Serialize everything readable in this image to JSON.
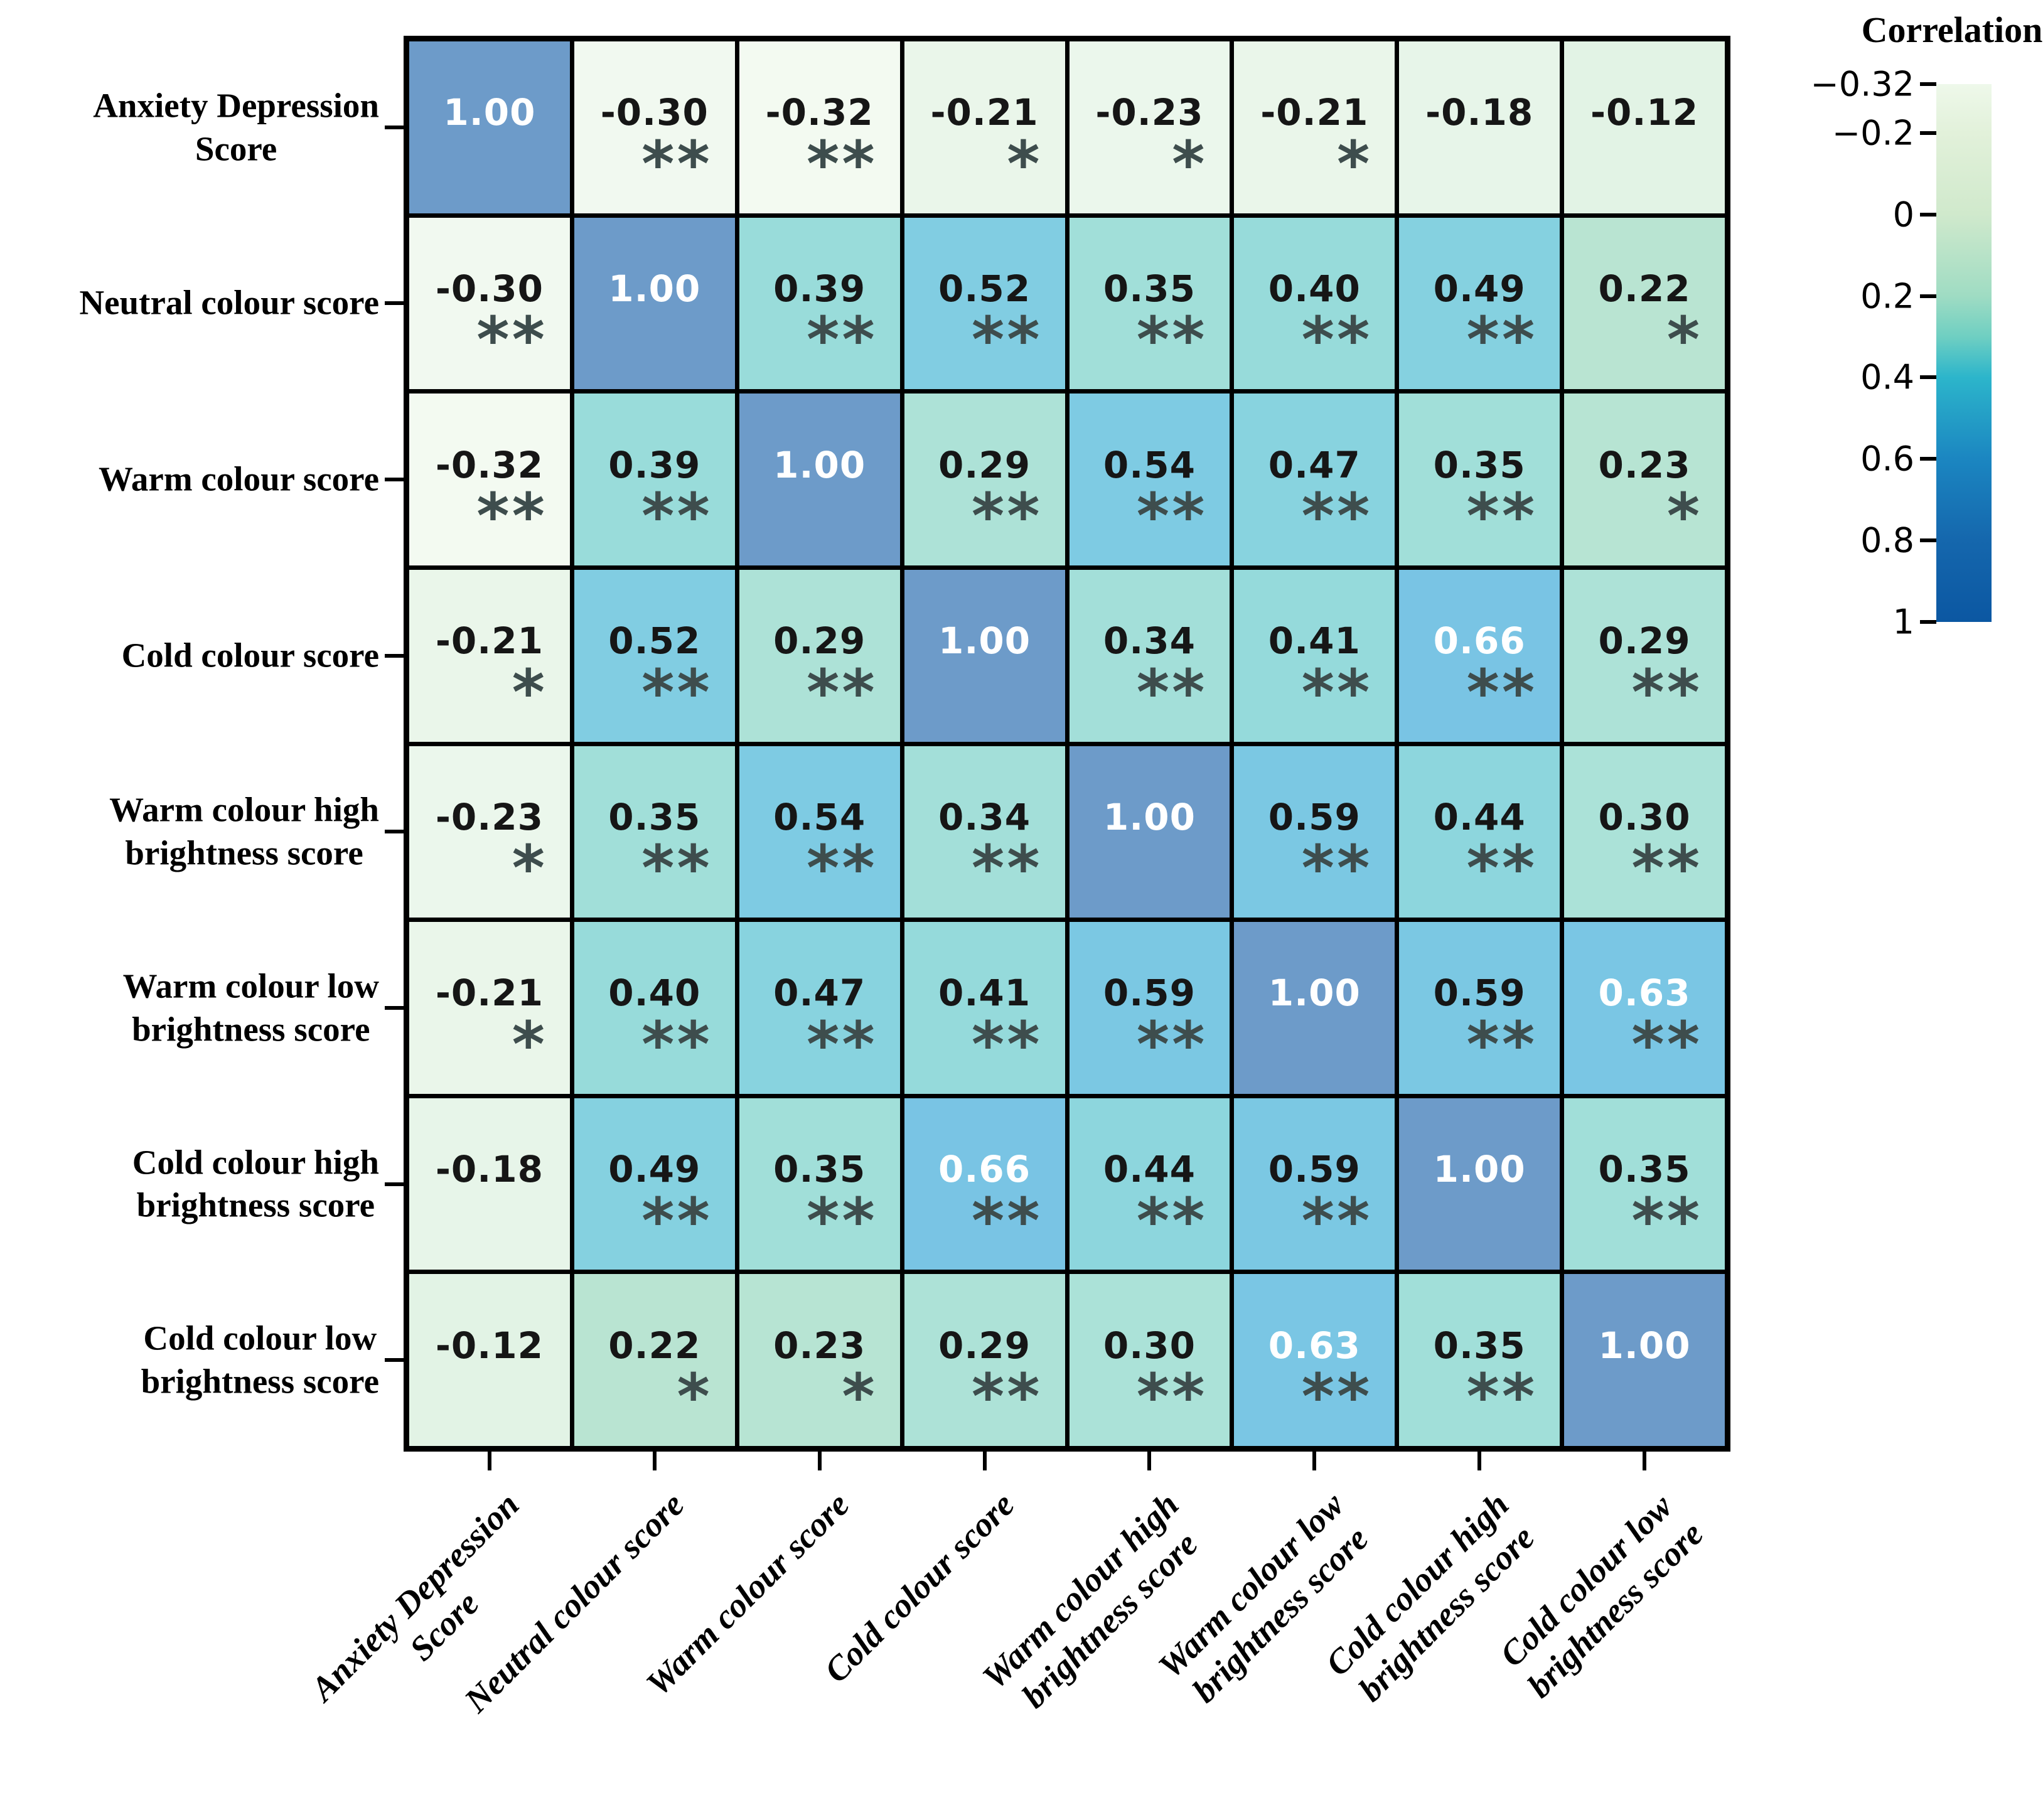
{
  "figure": {
    "kind": "correlation-heatmap"
  },
  "variables": [
    "Anxiety Depression Score",
    "Neutral colour score",
    "Warm colour score",
    "Cold colour score",
    "Warm colour high brightness score",
    "Warm colour low brightness score",
    "Cold colour high brightness score",
    "Cold colour low brightness score"
  ],
  "row_label_lines": [
    [
      "Anxiety Depression",
      "Score"
    ],
    [
      "Neutral colour score"
    ],
    [
      "Warm colour score"
    ],
    [
      "Cold colour score"
    ],
    [
      "Warm colour high",
      "brightness score"
    ],
    [
      "Warm colour low",
      "brightness score"
    ],
    [
      "Cold colour high",
      "brightness score"
    ],
    [
      "Cold colour low",
      "brightness score"
    ]
  ],
  "col_label_lines": [
    [
      "Anxiety Depression",
      "Score"
    ],
    [
      "Neutral colour score"
    ],
    [
      "Warm colour score"
    ],
    [
      "Cold colour score"
    ],
    [
      "Warm colour high",
      "brightness score"
    ],
    [
      "Warm colour low",
      "brightness score"
    ],
    [
      "Cold colour high",
      "brightness score"
    ],
    [
      "Cold colour low",
      "brightness score"
    ]
  ],
  "colorbar": {
    "title": "Correlation",
    "tick_labels": [
      "−0.32",
      "−0.2",
      "0",
      "0.2",
      "0.4",
      "0.6",
      "0.8",
      "1"
    ],
    "tick_values": [
      -0.32,
      -0.2,
      0,
      0.2,
      0.4,
      0.6,
      0.8,
      1
    ],
    "min": -0.32,
    "max": 1,
    "gradient_stops": [
      {
        "v": -0.32,
        "c": "#eef8ea"
      },
      {
        "v": -0.2,
        "c": "#e2f1da"
      },
      {
        "v": 0.0,
        "c": "#d0e9cc"
      },
      {
        "v": 0.2,
        "c": "#9fdcc3"
      },
      {
        "v": 0.3,
        "c": "#6fcfc2"
      },
      {
        "v": 0.4,
        "c": "#2cb5cb"
      },
      {
        "v": 0.6,
        "c": "#1b86c1"
      },
      {
        "v": 0.8,
        "c": "#1567ad"
      },
      {
        "v": 1.0,
        "c": "#0b57a2"
      }
    ]
  },
  "cell_color_stops": [
    {
      "v": -0.32,
      "c": "#f3faf1"
    },
    {
      "v": 0.0,
      "c": "#d8eede"
    },
    {
      "v": 0.2,
      "c": "#bce5d1"
    },
    {
      "v": 0.3,
      "c": "#abe2d8"
    },
    {
      "v": 0.4,
      "c": "#97dbda"
    },
    {
      "v": 0.45,
      "c": "#8bd5de"
    },
    {
      "v": 0.55,
      "c": "#7ccae3"
    },
    {
      "v": 0.66,
      "c": "#79c4e4"
    },
    {
      "v": 1.0,
      "c": "#6d9bc9"
    }
  ],
  "star_color": "#3e4d4d",
  "chart_data": {
    "type": "heatmap",
    "title": "",
    "categories": [
      "Anxiety Depression Score",
      "Neutral colour score",
      "Warm colour score",
      "Cold colour score",
      "Warm colour high brightness score",
      "Warm colour low brightness score",
      "Cold colour high brightness score",
      "Cold colour low brightness score"
    ],
    "matrix": [
      [
        1.0,
        -0.3,
        -0.32,
        -0.21,
        -0.23,
        -0.21,
        -0.18,
        -0.12
      ],
      [
        -0.3,
        1.0,
        0.39,
        0.52,
        0.35,
        0.4,
        0.49,
        0.22
      ],
      [
        -0.32,
        0.39,
        1.0,
        0.29,
        0.54,
        0.47,
        0.35,
        0.23
      ],
      [
        -0.21,
        0.52,
        0.29,
        1.0,
        0.34,
        0.41,
        0.66,
        0.29
      ],
      [
        -0.23,
        0.35,
        0.54,
        0.34,
        1.0,
        0.59,
        0.44,
        0.3
      ],
      [
        -0.21,
        0.4,
        0.47,
        0.41,
        0.59,
        1.0,
        0.59,
        0.63
      ],
      [
        -0.18,
        0.49,
        0.35,
        0.66,
        0.44,
        0.59,
        1.0,
        0.35
      ],
      [
        -0.12,
        0.22,
        0.23,
        0.29,
        0.3,
        0.63,
        0.35,
        1.0
      ]
    ],
    "significance": [
      [
        "",
        "**",
        "**",
        "*",
        "*",
        "*",
        "",
        ""
      ],
      [
        "**",
        "",
        "**",
        "**",
        "**",
        "**",
        "**",
        "*"
      ],
      [
        "**",
        "**",
        "",
        "**",
        "**",
        "**",
        "**",
        "*"
      ],
      [
        "*",
        "**",
        "**",
        "",
        "**",
        "**",
        "**",
        "**"
      ],
      [
        "*",
        "**",
        "**",
        "**",
        "",
        "**",
        "**",
        "**"
      ],
      [
        "*",
        "**",
        "**",
        "**",
        "**",
        "",
        "**",
        "**"
      ],
      [
        "",
        "**",
        "**",
        "**",
        "**",
        "**",
        "",
        "**"
      ],
      [
        "",
        "*",
        "*",
        "**",
        "**",
        "**",
        "**",
        ""
      ]
    ],
    "colorbar_title": "Correlation",
    "colorbar_ticks": [
      -0.32,
      -0.2,
      0,
      0.2,
      0.4,
      0.6,
      0.8,
      1
    ],
    "value_range": [
      -0.32,
      1
    ],
    "colormap": "GnBu-like (pale green to teal to blue)",
    "legend_position": "right",
    "grid": true
  }
}
